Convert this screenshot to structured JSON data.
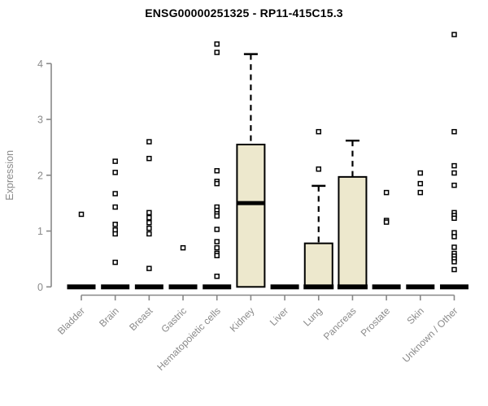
{
  "chart_data": {
    "type": "boxplot",
    "title": "ENSG00000251325 - RP11-415C15.3",
    "ylabel": "Expression",
    "xlabel": "",
    "ylim": [
      0,
      4.6
    ],
    "yticks": [
      0,
      1,
      2,
      3,
      4
    ],
    "grid": false,
    "legend": "none",
    "colors": {
      "box_fill": "#ede8cd",
      "box_stroke": "#000000",
      "axis": "#888888",
      "tick_text": "#8a8a8a",
      "title_text": "#000000",
      "outlier_fill": "#ffffff",
      "outlier_stroke": "#000000"
    },
    "categories": [
      {
        "label": "Bladder",
        "q1": 0,
        "median": 0,
        "q3": 0,
        "whisker_low": 0,
        "whisker_high": 0,
        "outliers": [
          1.3
        ]
      },
      {
        "label": "Brain",
        "q1": 0,
        "median": 0,
        "q3": 0,
        "whisker_low": 0,
        "whisker_high": 0,
        "outliers": [
          2.25,
          2.05,
          1.67,
          1.43,
          1.12,
          1.02,
          0.95,
          0.44
        ]
      },
      {
        "label": "Breast",
        "q1": 0,
        "median": 0,
        "q3": 0,
        "whisker_low": 0,
        "whisker_high": 0,
        "outliers": [
          2.6,
          2.3,
          1.33,
          1.24,
          1.15,
          1.05,
          0.95,
          0.33
        ]
      },
      {
        "label": "Gastric",
        "q1": 0,
        "median": 0,
        "q3": 0,
        "whisker_low": 0,
        "whisker_high": 0,
        "outliers": [
          0.7
        ]
      },
      {
        "label": "Hematopoietic cells",
        "q1": 0,
        "median": 0,
        "q3": 0,
        "whisker_low": 0,
        "whisker_high": 0,
        "outliers": [
          4.35,
          4.2,
          2.08,
          1.89,
          1.85,
          1.43,
          1.37,
          1.31,
          1.27,
          1.03,
          0.81,
          0.7,
          0.6,
          0.56,
          0.19
        ]
      },
      {
        "label": "Kidney",
        "q1": 0,
        "median": 1.5,
        "q3": 2.55,
        "whisker_low": 0,
        "whisker_high": 4.17,
        "outliers": []
      },
      {
        "label": "Liver",
        "q1": 0,
        "median": 0,
        "q3": 0,
        "whisker_low": 0,
        "whisker_high": 0,
        "outliers": []
      },
      {
        "label": "Lung",
        "q1": 0,
        "median": 0,
        "q3": 0.78,
        "whisker_low": 0,
        "whisker_high": 1.81,
        "outliers": [
          2.78,
          2.11
        ]
      },
      {
        "label": "Pancreas",
        "q1": 0,
        "median": 0,
        "q3": 1.97,
        "whisker_low": 0,
        "whisker_high": 2.62,
        "outliers": []
      },
      {
        "label": "Prostate",
        "q1": 0,
        "median": 0,
        "q3": 0,
        "whisker_low": 0,
        "whisker_high": 0,
        "outliers": [
          1.69,
          1.19,
          1.16
        ]
      },
      {
        "label": "Skin",
        "q1": 0,
        "median": 0,
        "q3": 0,
        "whisker_low": 0,
        "whisker_high": 0,
        "outliers": [
          2.04,
          1.85,
          1.69
        ]
      },
      {
        "label": "Unknown / Other",
        "q1": 0,
        "median": 0,
        "q3": 0,
        "whisker_low": 0,
        "whisker_high": 0,
        "outliers": [
          4.52,
          2.78,
          2.17,
          2.04,
          1.82,
          1.33,
          1.28,
          1.23,
          0.97,
          0.9,
          0.71,
          0.6,
          0.55,
          0.5,
          0.45,
          0.31
        ]
      }
    ]
  }
}
